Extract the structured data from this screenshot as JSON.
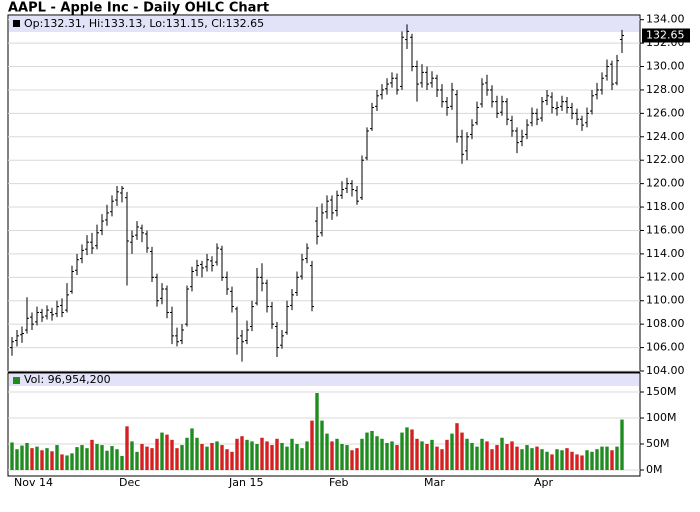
{
  "chart_data": {
    "type": "ohlc",
    "title": "AAPL - Apple Inc - Daily OHLC Chart",
    "price_header": "Op:132.31, Hi:133.13, Lo:131.15, Cl:132.65",
    "volume_header": "Vol: 96,954,200",
    "last_value_label": "132.65",
    "categories": [
      null,
      null,
      "Nov 14",
      null,
      null,
      null,
      null,
      null,
      null,
      null,
      null,
      null,
      null,
      null,
      null,
      null,
      null,
      null,
      null,
      null,
      null,
      null,
      null,
      "Dec",
      null,
      null,
      null,
      null,
      null,
      null,
      null,
      null,
      null,
      null,
      null,
      null,
      null,
      null,
      null,
      null,
      null,
      null,
      null,
      null,
      null,
      "Jan 15",
      null,
      null,
      null,
      null,
      null,
      null,
      null,
      null,
      null,
      null,
      null,
      null,
      null,
      null,
      null,
      null,
      null,
      null,
      null,
      "Feb",
      null,
      null,
      null,
      null,
      null,
      null,
      null,
      null,
      null,
      null,
      null,
      null,
      null,
      null,
      null,
      null,
      null,
      null,
      "Mar",
      null,
      null,
      null,
      null,
      null,
      null,
      null,
      null,
      null,
      null,
      null,
      null,
      null,
      null,
      null,
      null,
      null,
      null,
      null,
      null,
      null,
      "Apr",
      null,
      null,
      null,
      null,
      null,
      null,
      null,
      null,
      null,
      null,
      null,
      null,
      null,
      null,
      null,
      null
    ],
    "ohlc": [
      [
        106.0,
        106.9,
        105.3,
        106.5
      ],
      [
        106.6,
        107.5,
        106.1,
        107.0
      ],
      [
        107.1,
        107.8,
        106.4,
        107.2
      ],
      [
        107.5,
        110.3,
        107.2,
        108.5
      ],
      [
        108.6,
        109.0,
        107.5,
        108.0
      ],
      [
        108.2,
        109.5,
        107.9,
        109.0
      ],
      [
        109.0,
        109.3,
        108.2,
        108.6
      ],
      [
        108.7,
        109.6,
        108.4,
        109.2
      ],
      [
        109.0,
        109.4,
        108.3,
        108.8
      ],
      [
        108.9,
        110.0,
        108.6,
        109.5
      ],
      [
        109.6,
        110.2,
        108.6,
        109.0
      ],
      [
        109.2,
        111.5,
        109.0,
        110.5
      ],
      [
        110.8,
        113.0,
        110.6,
        112.5
      ],
      [
        112.6,
        114.0,
        112.2,
        113.5
      ],
      [
        113.6,
        114.8,
        113.2,
        114.3
      ],
      [
        114.4,
        115.6,
        113.9,
        115.0
      ],
      [
        115.0,
        115.8,
        114.0,
        114.5
      ],
      [
        114.7,
        116.5,
        114.4,
        115.8
      ],
      [
        116.0,
        117.4,
        115.6,
        116.8
      ],
      [
        116.9,
        118.2,
        116.4,
        117.5
      ],
      [
        117.6,
        119.0,
        117.2,
        118.5
      ],
      [
        118.6,
        119.8,
        118.1,
        119.3
      ],
      [
        119.2,
        119.8,
        118.4,
        119.6
      ],
      [
        118.8,
        119.3,
        111.3,
        115.1
      ],
      [
        115.0,
        116.0,
        114.0,
        115.5
      ],
      [
        115.6,
        116.8,
        115.2,
        116.3
      ],
      [
        116.2,
        116.5,
        115.0,
        115.8
      ],
      [
        115.7,
        116.0,
        114.1,
        114.5
      ],
      [
        114.2,
        114.6,
        111.6,
        112.0
      ],
      [
        112.0,
        112.3,
        109.5,
        110.0
      ],
      [
        110.2,
        111.5,
        109.7,
        111.0
      ],
      [
        111.0,
        111.3,
        108.5,
        109.0
      ],
      [
        109.0,
        109.5,
        106.3,
        107.0
      ],
      [
        107.0,
        107.7,
        106.1,
        106.5
      ],
      [
        106.6,
        108.0,
        106.3,
        107.5
      ],
      [
        108.0,
        111.3,
        107.8,
        111.0
      ],
      [
        111.2,
        112.9,
        110.8,
        112.5
      ],
      [
        112.6,
        113.5,
        112.1,
        113.0
      ],
      [
        113.1,
        113.4,
        112.0,
        112.8
      ],
      [
        112.9,
        114.0,
        112.5,
        113.5
      ],
      [
        113.4,
        113.8,
        112.5,
        113.0
      ],
      [
        113.3,
        114.9,
        113.0,
        114.5
      ],
      [
        114.4,
        114.7,
        111.7,
        112.0
      ],
      [
        112.0,
        112.5,
        110.5,
        111.0
      ],
      [
        110.8,
        111.2,
        109.0,
        109.5
      ],
      [
        109.3,
        109.5,
        105.4,
        106.8
      ],
      [
        107.0,
        107.5,
        104.8,
        106.5
      ],
      [
        106.6,
        108.3,
        106.3,
        107.5
      ],
      [
        107.8,
        110.0,
        107.4,
        109.5
      ],
      [
        109.8,
        112.8,
        109.6,
        112.0
      ],
      [
        112.0,
        113.2,
        110.8,
        111.5
      ],
      [
        111.5,
        111.8,
        109.0,
        109.5
      ],
      [
        109.5,
        109.9,
        107.6,
        108.0
      ],
      [
        107.8,
        108.2,
        105.2,
        106.0
      ],
      [
        106.2,
        107.5,
        105.9,
        107.0
      ],
      [
        107.3,
        110.0,
        107.1,
        109.5
      ],
      [
        109.6,
        111.0,
        109.2,
        110.5
      ],
      [
        110.7,
        112.5,
        110.4,
        112.0
      ],
      [
        112.1,
        114.0,
        111.8,
        113.5
      ],
      [
        113.6,
        114.9,
        113.2,
        114.5
      ],
      [
        113.0,
        113.4,
        109.1,
        109.5
      ],
      [
        116.8,
        118.0,
        114.8,
        115.5
      ],
      [
        115.8,
        118.3,
        115.5,
        117.5
      ],
      [
        117.6,
        119.0,
        117.0,
        118.5
      ],
      [
        118.6,
        119.0,
        116.9,
        117.5
      ],
      [
        117.7,
        119.4,
        117.2,
        119.0
      ],
      [
        119.0,
        120.2,
        118.7,
        119.5
      ],
      [
        119.6,
        120.5,
        119.2,
        120.0
      ],
      [
        120.0,
        120.3,
        118.9,
        119.5
      ],
      [
        119.4,
        119.8,
        118.2,
        118.5
      ],
      [
        118.8,
        122.4,
        118.6,
        122.0
      ],
      [
        122.2,
        124.8,
        122.0,
        124.5
      ],
      [
        124.7,
        126.9,
        124.5,
        126.5
      ],
      [
        126.6,
        128.0,
        126.2,
        127.5
      ],
      [
        127.6,
        128.5,
        127.2,
        128.0
      ],
      [
        128.1,
        129.0,
        127.6,
        128.5
      ],
      [
        128.6,
        129.5,
        128.2,
        129.0
      ],
      [
        129.0,
        129.4,
        127.6,
        128.0
      ],
      [
        128.3,
        133.0,
        128.0,
        132.5
      ],
      [
        132.3,
        133.6,
        131.5,
        133.0
      ],
      [
        132.5,
        132.8,
        129.6,
        130.0
      ],
      [
        130.0,
        130.5,
        127.0,
        128.5
      ],
      [
        128.6,
        130.2,
        128.2,
        129.5
      ],
      [
        129.5,
        130.0,
        128.0,
        128.5
      ],
      [
        128.6,
        129.6,
        128.2,
        129.0
      ],
      [
        129.0,
        129.3,
        127.4,
        128.0
      ],
      [
        128.0,
        128.5,
        126.5,
        127.0
      ],
      [
        127.0,
        127.4,
        125.8,
        126.5
      ],
      [
        126.6,
        128.6,
        126.3,
        128.0
      ],
      [
        127.6,
        128.0,
        123.5,
        124.0
      ],
      [
        124.0,
        124.6,
        121.7,
        122.5
      ],
      [
        122.8,
        124.4,
        122.0,
        124.0
      ],
      [
        124.2,
        125.5,
        123.8,
        125.0
      ],
      [
        125.2,
        127.0,
        125.0,
        126.5
      ],
      [
        126.8,
        129.0,
        126.5,
        128.5
      ],
      [
        128.6,
        129.3,
        127.5,
        128.0
      ],
      [
        128.0,
        128.4,
        126.5,
        127.0
      ],
      [
        127.0,
        127.5,
        125.6,
        126.0
      ],
      [
        126.1,
        127.5,
        125.8,
        127.0
      ],
      [
        127.0,
        127.3,
        125.0,
        125.5
      ],
      [
        125.4,
        125.8,
        124.0,
        124.5
      ],
      [
        124.5,
        124.8,
        122.6,
        123.5
      ],
      [
        123.6,
        124.6,
        123.2,
        124.0
      ],
      [
        124.2,
        125.5,
        123.8,
        125.0
      ],
      [
        125.2,
        126.5,
        124.9,
        126.0
      ],
      [
        126.0,
        126.4,
        125.0,
        125.5
      ],
      [
        125.6,
        127.4,
        125.3,
        127.0
      ],
      [
        127.1,
        128.0,
        126.7,
        127.5
      ],
      [
        127.4,
        127.8,
        126.0,
        126.5
      ],
      [
        126.4,
        127.0,
        125.8,
        126.5
      ],
      [
        126.6,
        127.5,
        126.2,
        127.0
      ],
      [
        127.0,
        127.4,
        126.0,
        126.5
      ],
      [
        126.5,
        126.9,
        125.5,
        126.0
      ],
      [
        126.0,
        126.4,
        125.0,
        125.5
      ],
      [
        125.5,
        125.8,
        124.5,
        125.0
      ],
      [
        125.2,
        126.5,
        124.8,
        126.0
      ],
      [
        126.2,
        128.0,
        125.9,
        127.5
      ],
      [
        127.6,
        128.6,
        127.2,
        128.0
      ],
      [
        128.0,
        129.5,
        127.6,
        129.0
      ],
      [
        129.2,
        130.6,
        128.8,
        130.0
      ],
      [
        130.2,
        130.5,
        128.0,
        128.5
      ],
      [
        128.6,
        131.0,
        128.4,
        130.5
      ],
      [
        132.31,
        133.13,
        131.15,
        132.65
      ]
    ],
    "volume": [
      53,
      40,
      47,
      52,
      42,
      45,
      38,
      42,
      36,
      48,
      30,
      28,
      32,
      44,
      48,
      42,
      58,
      50,
      48,
      37,
      46,
      40,
      27,
      84,
      55,
      35,
      50,
      45,
      42,
      60,
      72,
      68,
      58,
      42,
      48,
      62,
      80,
      62,
      50,
      45,
      52,
      55,
      48,
      40,
      35,
      60,
      65,
      58,
      55,
      50,
      62,
      55,
      48,
      60,
      52,
      45,
      60,
      50,
      42,
      55,
      95,
      148,
      95,
      70,
      55,
      60,
      50,
      48,
      38,
      42,
      60,
      72,
      75,
      65,
      60,
      52,
      55,
      48,
      72,
      82,
      78,
      60,
      55,
      50,
      58,
      45,
      40,
      58,
      70,
      90,
      72,
      60,
      52,
      45,
      60,
      55,
      40,
      48,
      62,
      50,
      55,
      45,
      40,
      48,
      42,
      45,
      40,
      35,
      30,
      40,
      38,
      42,
      35,
      30,
      28,
      38,
      35,
      40,
      45,
      45,
      38,
      45,
      96.9542
    ],
    "ylim": [
      104,
      134.4
    ],
    "yticks": [
      {
        "value": 104,
        "label": "104.00"
      },
      {
        "value": 106,
        "label": "106.00"
      },
      {
        "value": 108,
        "label": "108.00"
      },
      {
        "value": 110,
        "label": "110.00"
      },
      {
        "value": 112,
        "label": "112.00"
      },
      {
        "value": 114,
        "label": "114.00"
      },
      {
        "value": 116,
        "label": "116.00"
      },
      {
        "value": 118,
        "label": "118.00"
      },
      {
        "value": 120,
        "label": "120.00"
      },
      {
        "value": 122,
        "label": "122.00"
      },
      {
        "value": 124,
        "label": "124.00"
      },
      {
        "value": 126,
        "label": "126.00"
      },
      {
        "value": 128,
        "label": "128.00"
      },
      {
        "value": 130,
        "label": "130.00"
      },
      {
        "value": 132,
        "label": "132.00"
      },
      {
        "value": 134,
        "label": "134.00"
      }
    ],
    "volume_ylim": [
      -11.5,
      186.5
    ],
    "volume_yticks": [
      {
        "value": 0,
        "label": "0M"
      },
      {
        "value": 50,
        "label": "50M"
      },
      {
        "value": 100,
        "label": "100M"
      },
      {
        "value": 150,
        "label": "150M"
      }
    ],
    "grid": true,
    "bar_color": "#000000",
    "up_color": "#1e8c1e",
    "down_color": "#d42020",
    "header_color": "#e2e2f8"
  }
}
